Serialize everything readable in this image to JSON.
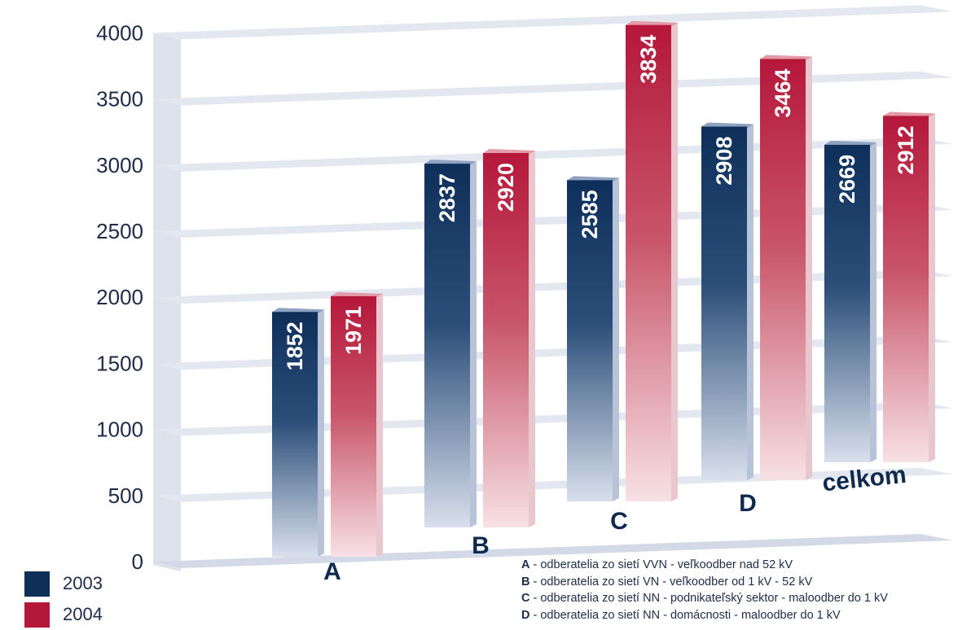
{
  "chart_data": {
    "type": "bar",
    "categories": [
      "A",
      "B",
      "C",
      "D",
      "celkom"
    ],
    "series": [
      {
        "name": "2003",
        "color": "#0d2f5a",
        "values": [
          1852,
          2837,
          2585,
          2908,
          2669
        ]
      },
      {
        "name": "2004",
        "color": "#b5173a",
        "values": [
          1971,
          2920,
          3834,
          3464,
          2912
        ]
      }
    ],
    "ylim": [
      0,
      4000
    ],
    "yticks": [
      "0",
      "500",
      "1000",
      "1500",
      "2000",
      "2500",
      "3000",
      "3500",
      "4000"
    ],
    "grid": true,
    "legend_position": "bottom-left",
    "style": "3d"
  },
  "legend": [
    {
      "label": "2003",
      "color": "#0d2f5a"
    },
    {
      "label": "2004",
      "color": "#b5173a"
    }
  ],
  "notes": [
    {
      "key": "A",
      "text": " - odberatelia zo sietí VVN - veľkoodber nad 52 kV"
    },
    {
      "key": "B",
      "text": " - odberatelia zo sietí VN - veľkoodber od 1 kV - 52 kV"
    },
    {
      "key": "C",
      "text": " - odberatelia zo sietí NN - podnikateľský sektor - maloodber do 1 kV"
    },
    {
      "key": "D",
      "text": " - odberatelia zo sietí NN - domácnosti - maloodber do 1 kV"
    }
  ]
}
